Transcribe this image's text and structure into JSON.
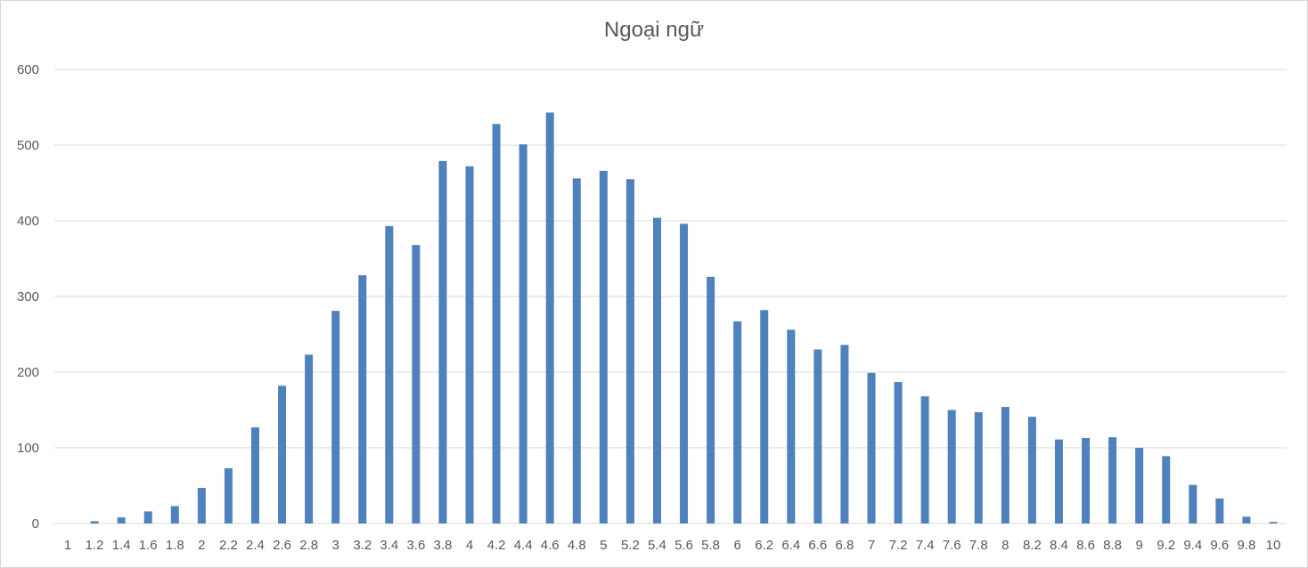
{
  "chart_data": {
    "type": "bar",
    "title": "Ngoại ngữ",
    "xlabel": "",
    "ylabel": "",
    "ylim": [
      0,
      600
    ],
    "yticks": [
      0,
      100,
      200,
      300,
      400,
      500,
      600
    ],
    "grid": true,
    "legend": "none",
    "bar_color": "#4f81bd",
    "categories": [
      "1",
      "1.2",
      "1.4",
      "1.6",
      "1.8",
      "2",
      "2.2",
      "2.4",
      "2.6",
      "2.8",
      "3",
      "3.2",
      "3.4",
      "3.6",
      "3.8",
      "4",
      "4.2",
      "4.4",
      "4.6",
      "4.8",
      "5",
      "5.2",
      "5.4",
      "5.6",
      "5.8",
      "6",
      "6.2",
      "6.4",
      "6.6",
      "6.8",
      "7",
      "7.2",
      "7.4",
      "7.6",
      "7.8",
      "8",
      "8.2",
      "8.4",
      "8.6",
      "8.8",
      "9",
      "9.2",
      "9.4",
      "9.6",
      "9.8",
      "10"
    ],
    "values": [
      0,
      3,
      8,
      16,
      23,
      47,
      73,
      127,
      182,
      223,
      281,
      328,
      393,
      368,
      479,
      472,
      528,
      501,
      543,
      456,
      466,
      455,
      404,
      396,
      326,
      267,
      282,
      256,
      230,
      236,
      199,
      187,
      168,
      150,
      147,
      154,
      141,
      111,
      113,
      114,
      100,
      89,
      51,
      33,
      9,
      2
    ]
  }
}
